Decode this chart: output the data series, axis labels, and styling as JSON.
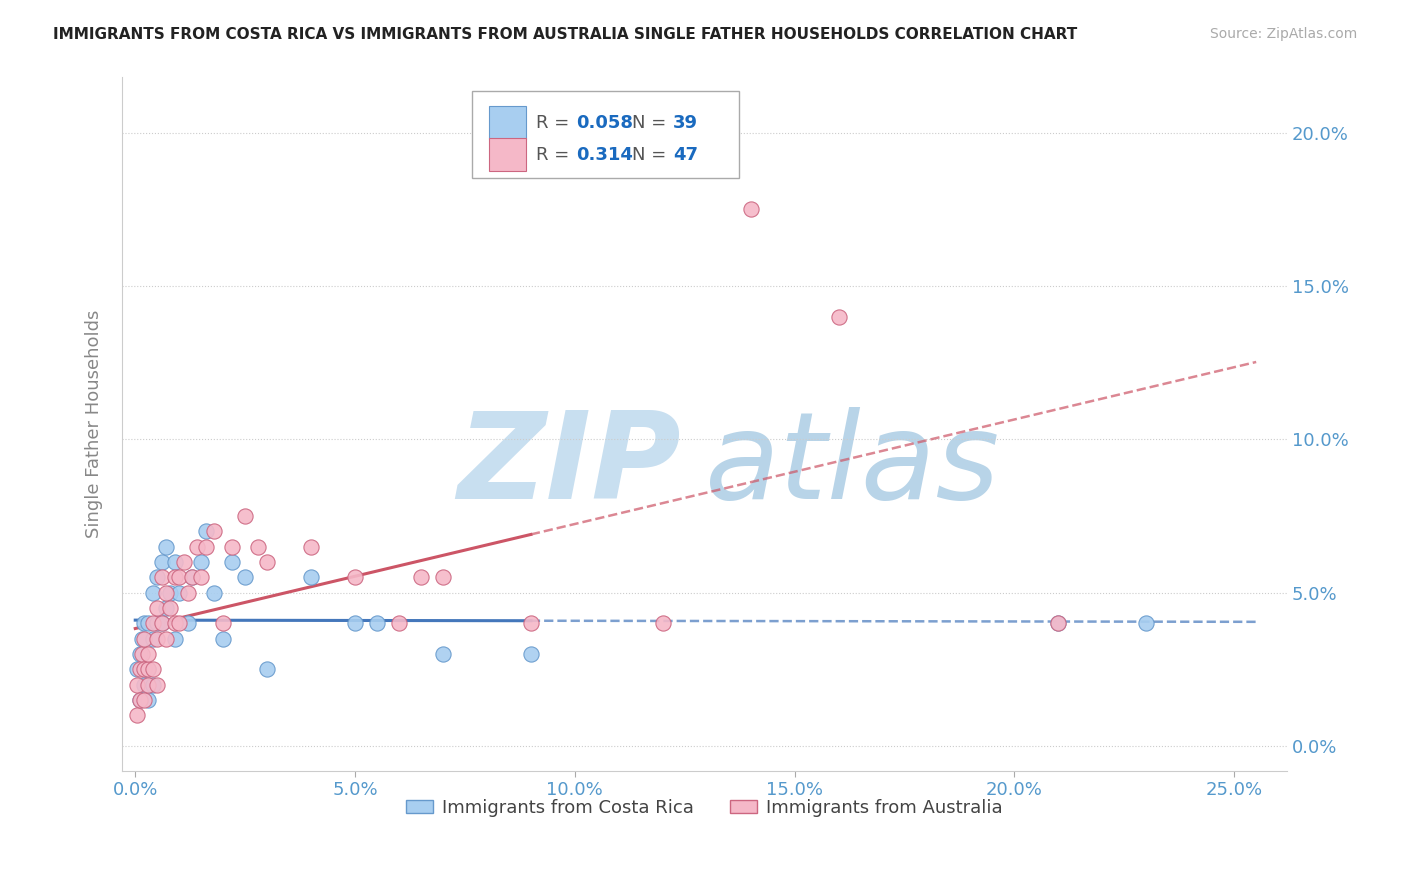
{
  "title": "IMMIGRANTS FROM COSTA RICA VS IMMIGRANTS FROM AUSTRALIA SINGLE FATHER HOUSEHOLDS CORRELATION CHART",
  "source": "Source: ZipAtlas.com",
  "ylabel": "Single Father Households",
  "xlabel_ticks": [
    0.0,
    0.05,
    0.1,
    0.15,
    0.2,
    0.25
  ],
  "ylabel_ticks": [
    0.0,
    0.05,
    0.1,
    0.15,
    0.2
  ],
  "xlim": [
    -0.003,
    0.262
  ],
  "ylim": [
    -0.008,
    0.218
  ],
  "series": [
    {
      "name": "Immigrants from Costa Rica",
      "color": "#a8cef0",
      "edge_color": "#6699cc",
      "trend_color": "#4477bb",
      "R": 0.058,
      "N": 39,
      "x": [
        0.0005,
        0.001,
        0.001,
        0.0015,
        0.002,
        0.002,
        0.002,
        0.003,
        0.003,
        0.003,
        0.004,
        0.004,
        0.004,
        0.005,
        0.005,
        0.006,
        0.006,
        0.007,
        0.007,
        0.008,
        0.009,
        0.009,
        0.01,
        0.012,
        0.013,
        0.015,
        0.016,
        0.018,
        0.02,
        0.022,
        0.025,
        0.03,
        0.04,
        0.05,
        0.055,
        0.07,
        0.09,
        0.21,
        0.23
      ],
      "y": [
        0.025,
        0.015,
        0.03,
        0.035,
        0.025,
        0.04,
        0.02,
        0.04,
        0.025,
        0.015,
        0.05,
        0.035,
        0.02,
        0.055,
        0.04,
        0.06,
        0.04,
        0.065,
        0.045,
        0.05,
        0.06,
        0.035,
        0.05,
        0.04,
        0.055,
        0.06,
        0.07,
        0.05,
        0.035,
        0.06,
        0.055,
        0.025,
        0.055,
        0.04,
        0.04,
        0.03,
        0.03,
        0.04,
        0.04
      ]
    },
    {
      "name": "Immigrants from Australia",
      "color": "#f5b8c8",
      "edge_color": "#cc6680",
      "trend_color": "#cc5566",
      "R": 0.314,
      "N": 47,
      "x": [
        0.0003,
        0.0005,
        0.001,
        0.001,
        0.0015,
        0.002,
        0.002,
        0.002,
        0.003,
        0.003,
        0.003,
        0.004,
        0.004,
        0.005,
        0.005,
        0.005,
        0.006,
        0.006,
        0.007,
        0.007,
        0.008,
        0.009,
        0.009,
        0.01,
        0.01,
        0.011,
        0.012,
        0.013,
        0.014,
        0.015,
        0.016,
        0.018,
        0.02,
        0.022,
        0.025,
        0.028,
        0.03,
        0.04,
        0.05,
        0.06,
        0.065,
        0.07,
        0.09,
        0.12,
        0.14,
        0.16,
        0.21
      ],
      "y": [
        0.01,
        0.02,
        0.015,
        0.025,
        0.03,
        0.015,
        0.025,
        0.035,
        0.025,
        0.02,
        0.03,
        0.04,
        0.025,
        0.045,
        0.035,
        0.02,
        0.055,
        0.04,
        0.05,
        0.035,
        0.045,
        0.055,
        0.04,
        0.055,
        0.04,
        0.06,
        0.05,
        0.055,
        0.065,
        0.055,
        0.065,
        0.07,
        0.04,
        0.065,
        0.075,
        0.065,
        0.06,
        0.065,
        0.055,
        0.04,
        0.055,
        0.055,
        0.04,
        0.04,
        0.175,
        0.14,
        0.04
      ]
    }
  ],
  "watermark_zip": "ZIP",
  "watermark_atlas": "atlas",
  "watermark_color_zip": "#c8dff0",
  "watermark_color_atlas": "#b8d4e8",
  "legend_color": "#1a6abf",
  "background_color": "#ffffff",
  "grid_color": "#cccccc",
  "tick_label_color": "#5599cc",
  "ylabel_color": "#888888"
}
